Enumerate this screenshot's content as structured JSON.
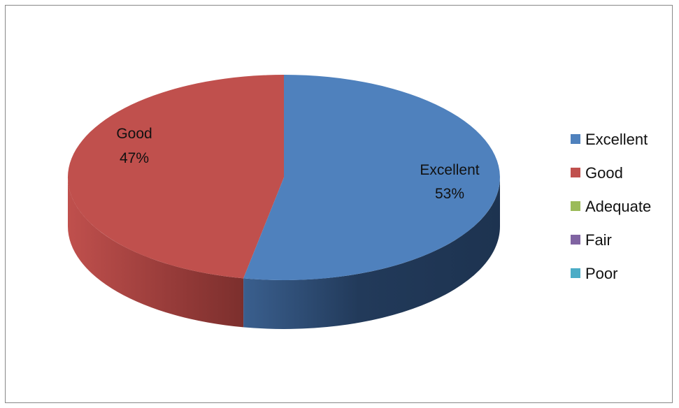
{
  "chart_data": {
    "type": "pie",
    "style": "3d",
    "categories": [
      "Excellent",
      "Good",
      "Adequate",
      "Fair",
      "Poor"
    ],
    "values": [
      53,
      47,
      0,
      0,
      0
    ],
    "value_labels": [
      "53%",
      "47%",
      "",
      "",
      ""
    ],
    "colors": [
      "#4F81BD",
      "#C0504D",
      "#9BBB59",
      "#8064A2",
      "#4BACC6"
    ],
    "legend_position": "right",
    "title": ""
  }
}
